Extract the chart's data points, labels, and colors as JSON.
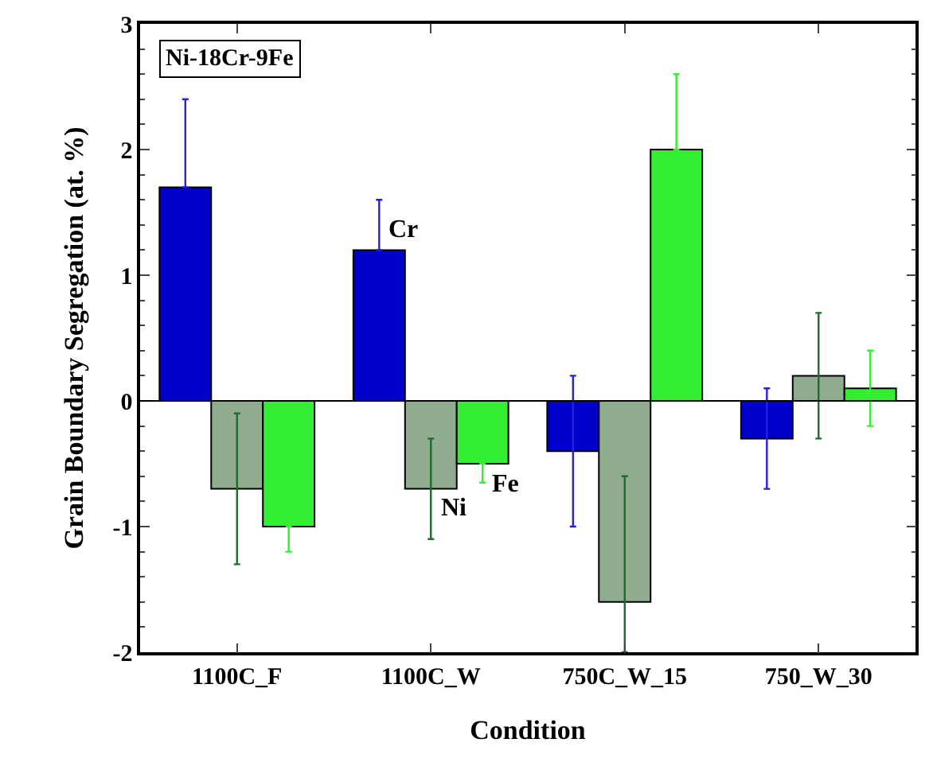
{
  "chart_data": {
    "type": "bar",
    "xlabel": "Condition",
    "ylabel": "Grain Boundary Segregation (at. %)",
    "categories": [
      "1100C_F",
      "1100C_W",
      "750C_W_15",
      "750_W_30"
    ],
    "series": [
      {
        "name": "Cr",
        "color": "#0000cc",
        "values": [
          1.7,
          1.2,
          -0.4,
          -0.3
        ],
        "errors": [
          [
            1.7,
            2.4
          ],
          [
            1.2,
            1.6
          ],
          [
            -1.0,
            0.2
          ],
          [
            -0.7,
            0.1
          ]
        ]
      },
      {
        "name": "Ni",
        "color": "#8fac8f",
        "values": [
          -0.7,
          -0.7,
          -1.6,
          0.2
        ],
        "errors": [
          [
            -1.3,
            -0.1
          ],
          [
            -1.1,
            -0.3
          ],
          [
            -2.0,
            -0.6
          ],
          [
            -0.3,
            0.7
          ]
        ]
      },
      {
        "name": "Fe",
        "color": "#33ee33",
        "values": [
          -1.0,
          -0.5,
          2.0,
          0.1
        ],
        "errors": [
          [
            -1.2,
            -1.0
          ],
          [
            -0.65,
            -0.5
          ],
          [
            2.0,
            2.6
          ],
          [
            -0.2,
            0.4
          ]
        ]
      }
    ],
    "annotations": [
      "Ni-18Cr-9Fe"
    ],
    "ylim": [
      -2,
      3
    ],
    "yticks": [
      -2,
      -1,
      0,
      1,
      2,
      3
    ],
    "ref_lines": [
      {
        "axis": "y",
        "value": 0
      }
    ]
  }
}
